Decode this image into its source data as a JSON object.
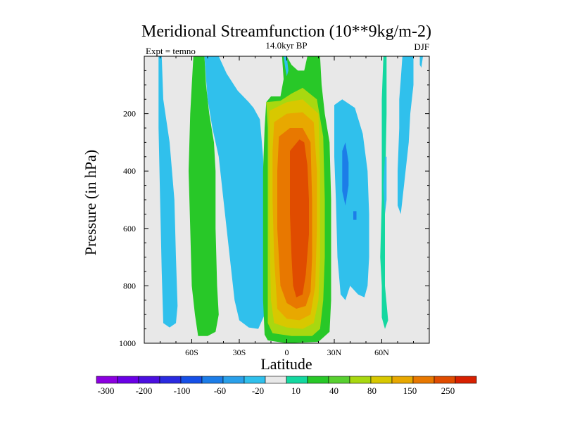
{
  "chart_data": {
    "type": "heatmap",
    "title": "Meridional Streamfunction (10**9kg/m-2)",
    "subtitle_left": "Expt = temno",
    "subtitle_center": "14.0kyr BP",
    "subtitle_right": "DJF",
    "xlabel": "Latitude",
    "ylabel": "Pressure (in hPa)",
    "xlim": [
      -90,
      90
    ],
    "ylim": [
      1000,
      0
    ],
    "x_ticks": [
      {
        "value": -60,
        "label": "60S"
      },
      {
        "value": -30,
        "label": "30S"
      },
      {
        "value": 0,
        "label": "0"
      },
      {
        "value": 30,
        "label": "30N"
      },
      {
        "value": 60,
        "label": "60N"
      }
    ],
    "y_ticks": [
      {
        "value": 200,
        "label": "200"
      },
      {
        "value": 400,
        "label": "400"
      },
      {
        "value": 600,
        "label": "600"
      },
      {
        "value": 800,
        "label": "800"
      },
      {
        "value": 1000,
        "label": "1000"
      }
    ],
    "colorbar": {
      "colors": [
        "#8b00e0",
        "#6a00e6",
        "#4b0fe0",
        "#2a2ae0",
        "#1650e8",
        "#1c7de8",
        "#2aa0ea",
        "#30c0ec",
        "#e8e8e8",
        "#14d8a0",
        "#28c828",
        "#58d030",
        "#a8d810",
        "#d8c800",
        "#e8a800",
        "#e87800",
        "#e04c00",
        "#d82000"
      ],
      "labels": [
        {
          "after_bin": 1,
          "text": "-300"
        },
        {
          "after_bin": 3,
          "text": "-200"
        },
        {
          "after_bin": 5,
          "text": "-100"
        },
        {
          "after_bin": 7,
          "text": "-60"
        },
        {
          "after_bin": 9,
          "text": "-20"
        },
        {
          "after_bin": 11,
          "text": "10"
        },
        {
          "after_bin": 13,
          "text": "40"
        },
        {
          "after_bin": 15,
          "text": "80"
        },
        {
          "after_bin": 17,
          "text": "150"
        },
        {
          "after_bin": 19,
          "text": "250"
        }
      ]
    },
    "regions": [
      {
        "name": "outer-cyan-band",
        "color": "#30c0ec",
        "points": [
          [
            -81,
            0
          ],
          [
            -79,
            0
          ],
          [
            -78,
            150
          ],
          [
            -74,
            300
          ],
          [
            -71,
            500
          ],
          [
            -70,
            700
          ],
          [
            -69,
            870
          ],
          [
            -70,
            930
          ],
          [
            -74,
            945
          ],
          [
            -78,
            930
          ],
          [
            -79,
            750
          ],
          [
            -80,
            500
          ],
          [
            -81,
            250
          ]
        ]
      },
      {
        "name": "green-band-southern",
        "color": "#28c828",
        "points": [
          [
            -59,
            0
          ],
          [
            -52,
            0
          ],
          [
            -51,
            100
          ],
          [
            -49,
            200
          ],
          [
            -46,
            300
          ],
          [
            -45,
            400
          ],
          [
            -45,
            600
          ],
          [
            -44,
            800
          ],
          [
            -43,
            900
          ],
          [
            -45,
            960
          ],
          [
            -50,
            975
          ],
          [
            -56,
            975
          ],
          [
            -58,
            900
          ],
          [
            -60,
            800
          ],
          [
            -61,
            600
          ],
          [
            -62,
            400
          ],
          [
            -61,
            200
          ],
          [
            -60,
            100
          ]
        ]
      },
      {
        "name": "cyan-band-southern",
        "color": "#30c0ec",
        "points": [
          [
            -52,
            0
          ],
          [
            -43,
            0
          ],
          [
            -38,
            60
          ],
          [
            -31,
            120
          ],
          [
            -24,
            160
          ],
          [
            -21,
            180
          ],
          [
            -17,
            220
          ],
          [
            -15,
            350
          ],
          [
            -14,
            500
          ],
          [
            -14,
            700
          ],
          [
            -13,
            800
          ],
          [
            -14,
            900
          ],
          [
            -18,
            950
          ],
          [
            -24,
            945
          ],
          [
            -30,
            920
          ],
          [
            -33,
            850
          ],
          [
            -36,
            700
          ],
          [
            -40,
            500
          ],
          [
            -43,
            350
          ],
          [
            -47,
            250
          ],
          [
            -50,
            150
          ],
          [
            -51,
            80
          ]
        ]
      },
      {
        "name": "equatorial-green-cell",
        "color": "#28c828",
        "points": [
          [
            -3,
            0
          ],
          [
            0,
            0
          ],
          [
            3,
            30
          ],
          [
            7,
            50
          ],
          [
            11,
            50
          ],
          [
            13,
            0
          ],
          [
            21,
            0
          ],
          [
            22,
            100
          ],
          [
            24,
            200
          ],
          [
            27,
            300
          ],
          [
            28,
            500
          ],
          [
            28,
            700
          ],
          [
            28,
            850
          ],
          [
            27,
            960
          ],
          [
            20,
            995
          ],
          [
            0,
            1000
          ],
          [
            -12,
            990
          ],
          [
            -14,
            970
          ],
          [
            -15,
            850
          ],
          [
            -15,
            600
          ],
          [
            -15,
            400
          ],
          [
            -14,
            250
          ],
          [
            -13,
            160
          ],
          [
            -10,
            140
          ],
          [
            -4,
            140
          ],
          [
            -2,
            80
          ]
        ]
      },
      {
        "name": "equatorial-yellowgreen",
        "color": "#a8d810",
        "points": [
          [
            -13,
            160
          ],
          [
            -4,
            155
          ],
          [
            3,
            130
          ],
          [
            10,
            110
          ],
          [
            19,
            150
          ],
          [
            23,
            280
          ],
          [
            24,
            500
          ],
          [
            24,
            700
          ],
          [
            23,
            850
          ],
          [
            21,
            950
          ],
          [
            16,
            975
          ],
          [
            3,
            975
          ],
          [
            -9,
            965
          ],
          [
            -12,
            930
          ],
          [
            -12,
            700
          ],
          [
            -12,
            400
          ],
          [
            -12,
            250
          ]
        ]
      },
      {
        "name": "equatorial-yellow",
        "color": "#d8c800",
        "points": [
          [
            -11,
            190
          ],
          [
            0,
            160
          ],
          [
            10,
            150
          ],
          [
            20,
            200
          ],
          [
            21,
            400
          ],
          [
            21,
            700
          ],
          [
            20,
            850
          ],
          [
            17,
            930
          ],
          [
            10,
            950
          ],
          [
            0,
            945
          ],
          [
            -8,
            930
          ],
          [
            -10,
            850
          ],
          [
            -11,
            600
          ],
          [
            -11,
            350
          ]
        ]
      },
      {
        "name": "equatorial-orange",
        "color": "#e8a800",
        "points": [
          [
            -8,
            230
          ],
          [
            0,
            200
          ],
          [
            10,
            195
          ],
          [
            17,
            230
          ],
          [
            19,
            400
          ],
          [
            19,
            600
          ],
          [
            18,
            800
          ],
          [
            15,
            900
          ],
          [
            8,
            920
          ],
          [
            0,
            915
          ],
          [
            -6,
            880
          ],
          [
            -8,
            700
          ],
          [
            -9,
            500
          ],
          [
            -9,
            330
          ]
        ]
      },
      {
        "name": "equatorial-darkorange",
        "color": "#e87800",
        "points": [
          [
            -5,
            280
          ],
          [
            2,
            250
          ],
          [
            10,
            250
          ],
          [
            15,
            300
          ],
          [
            16,
            500
          ],
          [
            16,
            700
          ],
          [
            15,
            820
          ],
          [
            12,
            870
          ],
          [
            6,
            880
          ],
          [
            0,
            860
          ],
          [
            -4,
            800
          ],
          [
            -6,
            600
          ],
          [
            -6,
            400
          ]
        ]
      },
      {
        "name": "equatorial-red-core",
        "color": "#e04c00",
        "points": [
          [
            2,
            330
          ],
          [
            8,
            290
          ],
          [
            11,
            300
          ],
          [
            13,
            380
          ],
          [
            14,
            500
          ],
          [
            14,
            620
          ],
          [
            12,
            760
          ],
          [
            10,
            830
          ],
          [
            6,
            840
          ],
          [
            4,
            800
          ],
          [
            3,
            700
          ],
          [
            2,
            550
          ]
        ]
      },
      {
        "name": "northern-cyan-cell",
        "color": "#30c0ec",
        "points": [
          [
            30,
            170
          ],
          [
            35,
            150
          ],
          [
            43,
            180
          ],
          [
            48,
            270
          ],
          [
            51,
            400
          ],
          [
            52,
            550
          ],
          [
            52,
            700
          ],
          [
            51,
            800
          ],
          [
            49,
            840
          ],
          [
            45,
            830
          ],
          [
            40,
            800
          ],
          [
            37,
            850
          ],
          [
            34,
            830
          ],
          [
            32,
            700
          ],
          [
            31,
            500
          ],
          [
            30,
            350
          ]
        ]
      },
      {
        "name": "northern-blue-core",
        "color": "#1c7de8",
        "points": [
          [
            35,
            330
          ],
          [
            37,
            300
          ],
          [
            39,
            370
          ],
          [
            39,
            450
          ],
          [
            37,
            520
          ],
          [
            35,
            470
          ]
        ]
      },
      {
        "name": "northern-blue-speck",
        "color": "#1c7de8",
        "points": [
          [
            42,
            540
          ],
          [
            44,
            540
          ],
          [
            44,
            570
          ],
          [
            42,
            570
          ]
        ]
      },
      {
        "name": "high-north-cyan-band",
        "color": "#30c0ec",
        "points": [
          [
            73,
            0
          ],
          [
            80,
            0
          ],
          [
            80,
            100
          ],
          [
            78,
            200
          ],
          [
            77,
            300
          ],
          [
            75,
            400
          ],
          [
            73,
            500
          ],
          [
            72,
            550
          ],
          [
            70,
            520
          ],
          [
            70,
            400
          ],
          [
            71,
            250
          ],
          [
            71,
            150
          ],
          [
            72,
            80
          ]
        ]
      },
      {
        "name": "northern-teal-spike",
        "color": "#14d8a0",
        "points": [
          [
            61,
            0
          ],
          [
            63,
            0
          ],
          [
            63,
            200
          ],
          [
            62,
            500
          ],
          [
            62,
            800
          ],
          [
            64,
            920
          ],
          [
            62,
            950
          ],
          [
            60,
            910
          ],
          [
            60,
            800
          ],
          [
            59,
            700
          ],
          [
            60,
            500
          ],
          [
            60,
            300
          ],
          [
            60,
            150
          ]
        ]
      },
      {
        "name": "northern-cyan-sliver",
        "color": "#30c0ec",
        "points": [
          [
            62,
            350
          ],
          [
            63,
            350
          ],
          [
            63,
            500
          ],
          [
            62,
            550
          ],
          [
            61,
            450
          ]
        ]
      },
      {
        "name": "top-cyan-sliver-a",
        "color": "#30c0ec",
        "points": [
          [
            -2,
            0
          ],
          [
            0,
            0
          ],
          [
            1,
            50
          ],
          [
            0,
            70
          ],
          [
            -1,
            40
          ]
        ]
      },
      {
        "name": "top-cyan-sliver-b",
        "color": "#30c0ec",
        "points": [
          [
            84,
            0
          ],
          [
            86,
            0
          ],
          [
            85,
            40
          ],
          [
            84,
            30
          ]
        ]
      }
    ]
  }
}
